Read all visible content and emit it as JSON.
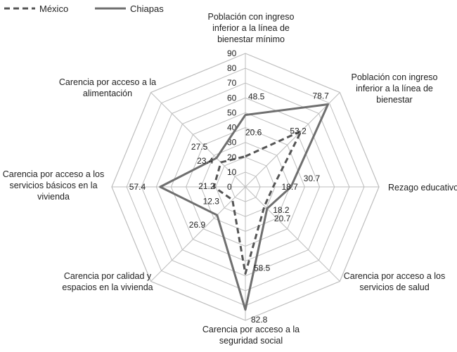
{
  "chart_data": {
    "type": "radar",
    "rmax": 90,
    "ticks": [
      0,
      10,
      20,
      30,
      40,
      50,
      60,
      70,
      80,
      90
    ],
    "grid": true,
    "legend_position": "top-left",
    "axes": [
      {
        "label": [
          "Población con ingreso",
          "inferior a la línea de",
          "bienestar mínimo"
        ]
      },
      {
        "label": [
          "Población con ingreso",
          "inferior a la línea de",
          "bienestar"
        ]
      },
      {
        "label": [
          "Rezago educativo"
        ]
      },
      {
        "label": [
          "Carencia por acceso a los",
          "servicios de salud"
        ]
      },
      {
        "label": [
          "Carencia por acceso a la",
          "seguridad social"
        ]
      },
      {
        "label": [
          "Carencia por calidad y",
          "espacios en la vivienda"
        ]
      },
      {
        "label": [
          "Carencia por acceso a los",
          "servicios básicos en la",
          "vivienda"
        ]
      },
      {
        "label": [
          "Carencia por acceso a la",
          "alimentación"
        ]
      }
    ],
    "series": [
      {
        "name": "México",
        "style": "dashed",
        "color": "#555555",
        "values": [
          20.6,
          53.2,
          18.7,
          18.2,
          58.5,
          12.3,
          21.2,
          23.4
        ]
      },
      {
        "name": "Chiapas",
        "style": "solid",
        "color": "#6f6f6f",
        "values": [
          48.5,
          78.7,
          30.7,
          20.7,
          82.8,
          26.9,
          57.4,
          27.5
        ]
      }
    ]
  }
}
